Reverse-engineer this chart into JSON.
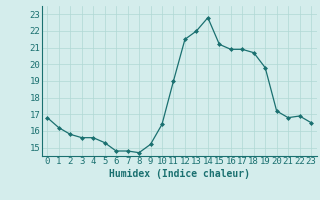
{
  "x": [
    0,
    1,
    2,
    3,
    4,
    5,
    6,
    7,
    8,
    9,
    10,
    11,
    12,
    13,
    14,
    15,
    16,
    17,
    18,
    19,
    20,
    21,
    22,
    23
  ],
  "y": [
    16.8,
    16.2,
    15.8,
    15.6,
    15.6,
    15.3,
    14.8,
    14.8,
    14.7,
    15.2,
    16.4,
    19.0,
    21.5,
    22.0,
    22.8,
    21.2,
    20.9,
    20.9,
    20.7,
    19.8,
    17.2,
    16.8,
    16.9,
    16.5
  ],
  "xlabel": "Humidex (Indice chaleur)",
  "ylim": [
    14.5,
    23.5
  ],
  "xlim": [
    -0.5,
    23.5
  ],
  "yticks": [
    15,
    16,
    17,
    18,
    19,
    20,
    21,
    22,
    23
  ],
  "xticks": [
    0,
    1,
    2,
    3,
    4,
    5,
    6,
    7,
    8,
    9,
    10,
    11,
    12,
    13,
    14,
    15,
    16,
    17,
    18,
    19,
    20,
    21,
    22,
    23
  ],
  "line_color": "#1a7070",
  "marker_color": "#1a7070",
  "bg_color": "#d4edec",
  "grid_color": "#b0d8d5",
  "text_color": "#1a7070",
  "xlabel_fontsize": 7,
  "tick_fontsize": 6.5
}
